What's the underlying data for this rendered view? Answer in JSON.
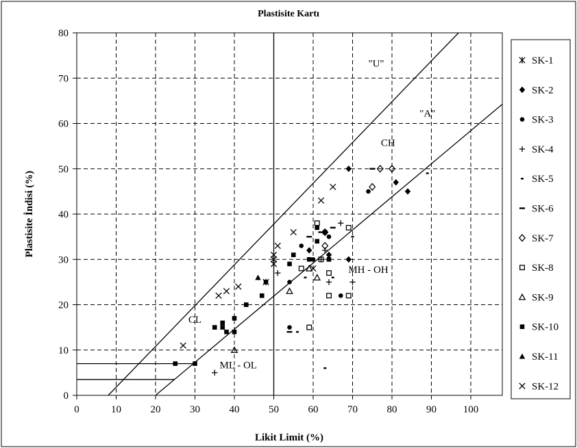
{
  "chart_data": {
    "type": "scatter",
    "title": "Plastisite Kartı",
    "xlabel": "Likit Limit (%)",
    "ylabel": "Plastisite İndisi (%)",
    "xlim": [
      0,
      108
    ],
    "ylim": [
      0,
      80
    ],
    "x_ticks": [
      "0",
      "10",
      "20",
      "30",
      "40",
      "50",
      "60",
      "70",
      "80",
      "90",
      "100"
    ],
    "y_ticks": [
      "0",
      "10",
      "20",
      "30",
      "40",
      "50",
      "60",
      "70",
      "80"
    ],
    "grid": true,
    "legend_position": "right",
    "zone_labels": [
      {
        "text": "\"U\"",
        "x": 76,
        "y": 72.5
      },
      {
        "text": "\"A\"",
        "x": 89,
        "y": 61.5
      },
      {
        "text": "CH",
        "x": 79,
        "y": 55
      },
      {
        "text": "MH - OH",
        "x": 74,
        "y": 27
      },
      {
        "text": "CL",
        "x": 30,
        "y": 16
      },
      {
        "text": "ML - OL",
        "x": 41,
        "y": 6
      }
    ],
    "series": [
      {
        "name": "SK-1",
        "marker": "asterisk",
        "points": [
          [
            50,
            30
          ],
          [
            50,
            29
          ],
          [
            48,
            25
          ]
        ]
      },
      {
        "name": "SK-2",
        "marker": "diamond",
        "points": [
          [
            69,
            50
          ],
          [
            81,
            47
          ],
          [
            84,
            45
          ],
          [
            69,
            30
          ],
          [
            64,
            31
          ],
          [
            59,
            32
          ]
        ]
      },
      {
        "name": "SK-3",
        "marker": "circle",
        "points": [
          [
            74,
            45
          ],
          [
            57,
            33
          ],
          [
            54,
            25
          ],
          [
            54,
            15
          ],
          [
            67,
            22
          ],
          [
            60,
            30
          ],
          [
            63,
            36
          ],
          [
            64,
            35
          ]
        ]
      },
      {
        "name": "SK-4",
        "marker": "plus",
        "points": [
          [
            35,
            5
          ],
          [
            51,
            27
          ],
          [
            62,
            30
          ],
          [
            67,
            38
          ],
          [
            70,
            25
          ],
          [
            64,
            25
          ],
          [
            63,
            32
          ]
        ]
      },
      {
        "name": "SK-5",
        "marker": "dash-small",
        "points": [
          [
            89,
            49
          ],
          [
            70,
            35
          ],
          [
            65,
            26
          ],
          [
            58,
            26
          ],
          [
            56,
            14
          ],
          [
            63,
            6
          ]
        ]
      },
      {
        "name": "SK-6",
        "marker": "dash",
        "points": [
          [
            75,
            50
          ],
          [
            59,
            35
          ],
          [
            65,
            37
          ],
          [
            54,
            14
          ],
          [
            62,
            36
          ]
        ]
      },
      {
        "name": "SK-7",
        "marker": "diamond-open",
        "points": [
          [
            75,
            46
          ],
          [
            77,
            50
          ],
          [
            80,
            50
          ],
          [
            63,
            33
          ],
          [
            63,
            36
          ]
        ]
      },
      {
        "name": "SK-8",
        "marker": "square-open",
        "points": [
          [
            69,
            37
          ],
          [
            61,
            38
          ],
          [
            62,
            30
          ],
          [
            57,
            28
          ],
          [
            64,
            27
          ],
          [
            64,
            22
          ],
          [
            69,
            22
          ],
          [
            59,
            15
          ]
        ]
      },
      {
        "name": "SK-9",
        "marker": "triangle-open",
        "points": [
          [
            40,
            10
          ],
          [
            54,
            23
          ],
          [
            61,
            26
          ],
          [
            59,
            28
          ]
        ]
      },
      {
        "name": "SK-10",
        "marker": "square",
        "points": [
          [
            25,
            7
          ],
          [
            30,
            7
          ],
          [
            35,
            15
          ],
          [
            37,
            16
          ],
          [
            38,
            14
          ],
          [
            40,
            14
          ],
          [
            40,
            17
          ],
          [
            37,
            15
          ],
          [
            43,
            20
          ],
          [
            47,
            22
          ],
          [
            48,
            25
          ],
          [
            54,
            29
          ],
          [
            55,
            31
          ],
          [
            59,
            30
          ],
          [
            61,
            34
          ],
          [
            61,
            37
          ],
          [
            63,
            36
          ],
          [
            64,
            30
          ]
        ]
      },
      {
        "name": "SK-11",
        "marker": "triangle",
        "points": [
          [
            46,
            26
          ]
        ]
      },
      {
        "name": "SK-12",
        "marker": "x",
        "points": [
          [
            27,
            11
          ],
          [
            36,
            22
          ],
          [
            38,
            23
          ],
          [
            41,
            24
          ],
          [
            50,
            31
          ],
          [
            51,
            33
          ],
          [
            55,
            36
          ],
          [
            60,
            28
          ],
          [
            62,
            43
          ],
          [
            65,
            46
          ]
        ]
      }
    ]
  }
}
